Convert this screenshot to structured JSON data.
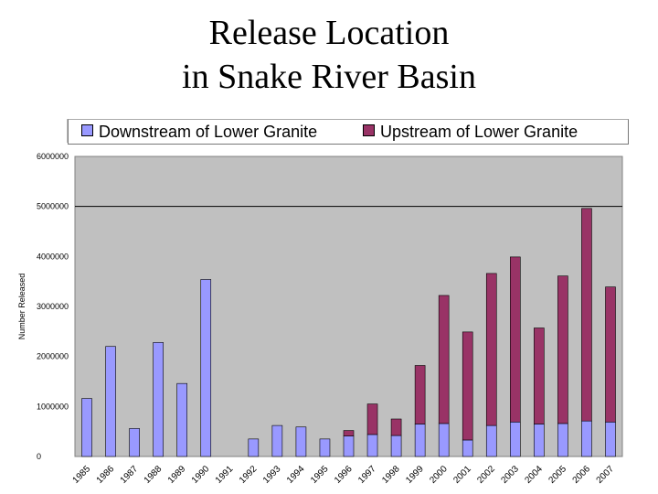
{
  "title_line1": "Release Location",
  "title_line2": "in Snake River Basin",
  "colors": {
    "downstream": "#9999ff",
    "upstream": "#993366",
    "plot_bg": "#c0c0c0"
  },
  "chart_data": {
    "type": "bar",
    "stacked": true,
    "ylabel": "Number Released",
    "ylim": [
      0,
      6000000
    ],
    "yticks": [
      "0",
      "1000000",
      "2000000",
      "3000000",
      "4000000",
      "5000000",
      "6000000"
    ],
    "categories": [
      "1985",
      "1986",
      "1987",
      "1988",
      "1989",
      "1990",
      "1991",
      "1992",
      "1993",
      "1994",
      "1995",
      "1996",
      "1997",
      "1998",
      "1999",
      "2000",
      "2001",
      "2002",
      "2003",
      "2004",
      "2005",
      "2006",
      "2007"
    ],
    "series": [
      {
        "name": "Downstream of Lower Granite",
        "values": [
          1160000,
          2200000,
          560000,
          2280000,
          1460000,
          3540000,
          0,
          350000,
          620000,
          590000,
          350000,
          410000,
          440000,
          420000,
          650000,
          660000,
          330000,
          620000,
          690000,
          650000,
          660000,
          710000,
          690000
        ]
      },
      {
        "name": "Upstream of Lower Granite",
        "values": [
          0,
          0,
          0,
          0,
          0,
          0,
          0,
          0,
          0,
          0,
          0,
          110000,
          610000,
          330000,
          1170000,
          2560000,
          2160000,
          3040000,
          3300000,
          1920000,
          2950000,
          4250000,
          2700000
        ]
      }
    ],
    "legend_position": "top",
    "grid": "major horizontal line at 5000000"
  }
}
